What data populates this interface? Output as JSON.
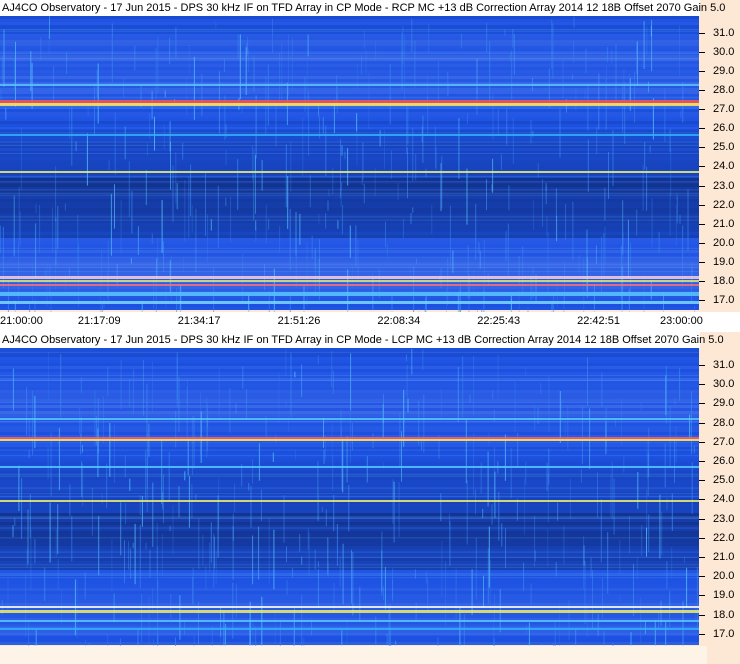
{
  "panels": [
    {
      "title": "AJ4CO Observatory - 17 Jun 2015 - DPS 30 kHz IF on TFD Array in CP Mode - RCP  MC +13 dB   Correction Array 2014 12 18B   Offset 2070   Gain 5.0"
    },
    {
      "title": "AJ4CO Observatory - 17 Jun 2015 - DPS 30 kHz IF on TFD Array in CP Mode - LCP  MC +13 dB   Correction Array 2014 12 18B   Offset 2070   Gain 5.0"
    }
  ],
  "frequency_ticks": [
    "31.0",
    "30.0",
    "29.0",
    "28.0",
    "27.0",
    "26.0",
    "25.0",
    "24.0",
    "23.0",
    "22.0",
    "21.0",
    "20.0",
    "19.0",
    "18.0",
    "17.0"
  ],
  "frequency_values": [
    31,
    30,
    29,
    28,
    27,
    26,
    25,
    24,
    23,
    22,
    21,
    20,
    19,
    18,
    17
  ],
  "time_ticks": [
    "21:00:00",
    "21:17:09",
    "21:34:17",
    "21:51:26",
    "22:08:34",
    "22:25:43",
    "22:42:51",
    "23:00:00"
  ],
  "colors": {
    "background_blue": "#1a4fd1",
    "dark_blue": "#0f2fa8",
    "cyan": "#2fb4ff",
    "yellow": "#f4f060",
    "red": "#ff3030",
    "axis_bg": "#fde8d6"
  }
}
